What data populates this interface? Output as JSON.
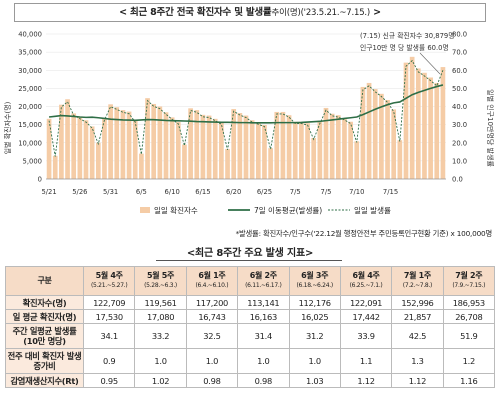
{
  "header": {
    "title": "< 최근 8주간 전국 확진자수 및 발생률",
    "unit": "추이(명)",
    "range": "('23.5.21.~7.15.)",
    "suffix": ">"
  },
  "footnote": "*발생률: 확진자수/인구수('22.12월 행정안전부 주민등록인구현황 기준) x 100,000명",
  "table": {
    "title": "<최근 8주간 주요 발생 지표>",
    "corner": "구분",
    "columns": [
      {
        "label": "5월 4주",
        "sub": "(5.21.~5.27.)"
      },
      {
        "label": "5월 5주",
        "sub": "(5.28.~6.3.)"
      },
      {
        "label": "6월 1주",
        "sub": "(6.4.~6.10.)"
      },
      {
        "label": "6월 2주",
        "sub": "(6.11.~6.17.)"
      },
      {
        "label": "6월 3주",
        "sub": "(6.18.~6.24.)"
      },
      {
        "label": "6월 4주",
        "sub": "(6.25.~7.1.)"
      },
      {
        "label": "7월 1주",
        "sub": "(7.2.~7.8.)"
      },
      {
        "label": "7월 2주",
        "sub": "(7.9.~7.15.)"
      }
    ],
    "rows": [
      {
        "label": "확진자수(명)",
        "values": [
          "122,709",
          "119,561",
          "117,200",
          "113,141",
          "112,176",
          "122,091",
          "152,996",
          "186,953"
        ]
      },
      {
        "label": "일 평균 확진자(명)",
        "values": [
          "17,530",
          "17,080",
          "16,743",
          "16,163",
          "16,025",
          "17,442",
          "21,857",
          "26,708"
        ]
      },
      {
        "label": "주간 일평균 발생률(10만 명당)",
        "values": [
          "34.1",
          "33.2",
          "32.5",
          "31.4",
          "31.2",
          "33.9",
          "42.5",
          "51.9"
        ]
      },
      {
        "label": "전주 대비 확진자 발생 증가비",
        "values": [
          "0.9",
          "1.0",
          "1.0",
          "1.0",
          "1.0",
          "1.1",
          "1.3",
          "1.2"
        ]
      },
      {
        "label": "감염재생산지수(Rt)",
        "values": [
          "0.95",
          "1.02",
          "0.98",
          "0.98",
          "1.03",
          "1.12",
          "1.12",
          "1.16"
        ]
      }
    ]
  },
  "chart_data": {
    "type": "bar",
    "x_ticks": [
      "5/21",
      "5/26",
      "5/31",
      "6/5",
      "6/10",
      "6/15",
      "6/20",
      "6/25",
      "7/5",
      "7/5",
      "7/10",
      "7/15"
    ],
    "ylabel_left": "일별 확진자수(명)",
    "ylabel_right": "일별 인구10만명당 발생률",
    "ylim_left": [
      0,
      40000
    ],
    "ylim_right": [
      0,
      80
    ],
    "y_ticks_left": [
      "0",
      "5,000",
      "10,000",
      "15,000",
      "20,000",
      "25,000",
      "30,000",
      "35,000",
      "40,000"
    ],
    "y_ticks_right": [
      "0.0",
      "10.0",
      "20.0",
      "30.0",
      "40.0",
      "50.0",
      "60.0",
      "70.0",
      "80.0"
    ],
    "annotation": [
      "(7.15) 신규 확진자수 30,879명",
      "인구10만 명 당 발생률 60.0명"
    ],
    "series": [
      {
        "name": "일일 확진자수",
        "kind": "bar",
        "color": "#f5cca6",
        "values": [
          16600,
          6400,
          20500,
          22000,
          18100,
          17200,
          16200,
          14500,
          10000,
          16800,
          20600,
          19800,
          19000,
          18600,
          16200,
          7000,
          22300,
          20700,
          20000,
          18400,
          17000,
          15700,
          9500,
          19500,
          19000,
          17700,
          17500,
          16600,
          15600,
          8300,
          19300,
          18200,
          17500,
          16200,
          15600,
          14900,
          8500,
          18500,
          18500,
          17600,
          15800,
          15800,
          15400,
          11300,
          15800,
          19600,
          18000,
          17600,
          16800,
          15800,
          10400,
          25400,
          26500,
          24800,
          23500,
          21800,
          19200,
          10700,
          32100,
          33700,
          30500,
          29300,
          28000,
          26500,
          30879
        ]
      },
      {
        "name": "7일 이동평균(발생률)",
        "kind": "line",
        "color": "#2e6e46",
        "values": [
          34.2,
          34.6,
          35.0,
          34.8,
          34.5,
          34.2,
          34.0,
          34.1,
          33.8,
          33.4,
          33.0,
          32.8,
          32.6,
          32.5,
          32.4,
          32.6,
          32.8,
          32.7,
          32.5,
          32.3,
          32.2,
          32.1,
          32.0,
          31.9,
          31.7,
          31.6,
          31.5,
          31.4,
          31.3,
          31.3,
          31.2,
          31.1,
          31.1,
          31.0,
          31.0,
          31.0,
          31.0,
          31.1,
          31.1,
          31.1,
          31.1,
          31.2,
          31.4,
          31.6,
          31.8,
          32.2,
          32.6,
          33.0,
          33.4,
          33.8,
          34.2,
          35.5,
          37.0,
          38.5,
          39.8,
          41.0,
          42.0,
          42.5,
          44.5,
          46.5,
          47.8,
          48.9,
          50.0,
          51.0,
          51.9
        ]
      },
      {
        "name": "일일 발생률",
        "kind": "dashed-line",
        "color": "#2e6e46",
        "values": [
          32.2,
          12.4,
          39.7,
          42.6,
          35.1,
          33.3,
          31.4,
          28.1,
          19.4,
          32.6,
          39.9,
          38.4,
          36.8,
          36.0,
          31.4,
          13.6,
          43.2,
          40.1,
          38.8,
          35.7,
          32.9,
          30.4,
          18.4,
          37.8,
          36.8,
          34.3,
          33.9,
          32.2,
          30.2,
          16.1,
          37.4,
          35.3,
          33.9,
          31.4,
          30.2,
          28.9,
          16.5,
          35.9,
          35.9,
          34.1,
          30.6,
          30.6,
          29.8,
          21.9,
          30.6,
          38.0,
          34.9,
          34.1,
          32.6,
          30.6,
          20.2,
          49.2,
          51.4,
          48.1,
          45.5,
          42.3,
          37.2,
          20.7,
          62.2,
          65.3,
          59.1,
          56.8,
          54.3,
          51.4,
          60.0
        ]
      }
    ],
    "legend": "bottom"
  }
}
